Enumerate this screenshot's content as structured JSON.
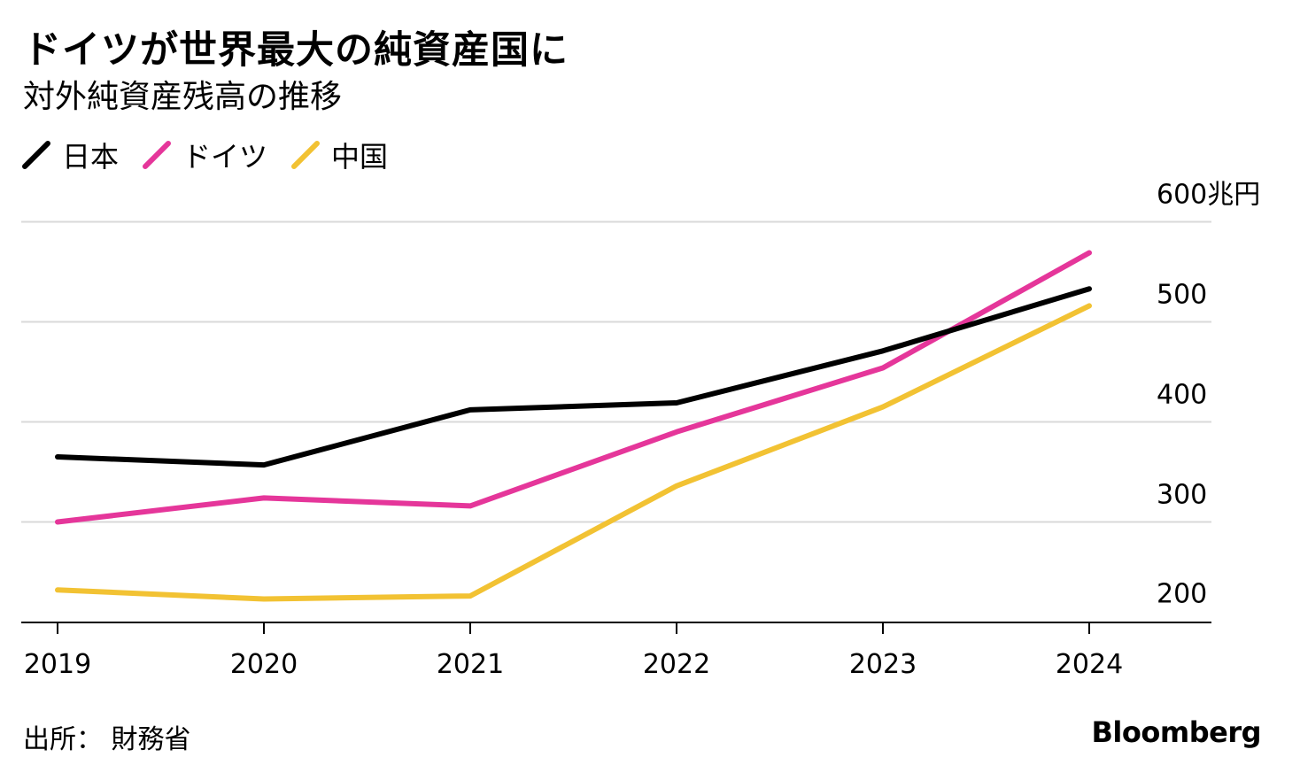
{
  "header": {
    "title": "ドイツが世界最大の純資産国に",
    "subtitle": "対外純資産残高の推移"
  },
  "footer": {
    "source": "出所： 財務省",
    "brand": "Bloomberg"
  },
  "chart_data": {
    "type": "line",
    "title": "ドイツが世界最大の純資産国に",
    "subtitle": "対外純資産残高の推移",
    "x": [
      "2019",
      "2020",
      "2021",
      "2022",
      "2023",
      "2024"
    ],
    "y_ticks": [
      200,
      300,
      400,
      500,
      600
    ],
    "y_tick_labels": [
      "200",
      "300",
      "400",
      "500",
      "600兆円"
    ],
    "ylim": [
      190,
      600
    ],
    "grid": true,
    "legend_position": "top-left",
    "series": [
      {
        "name": "日本",
        "color": "#000000",
        "values": [
          365,
          357,
          412,
          419,
          471,
          533
        ]
      },
      {
        "name": "ドイツ",
        "color": "#e5369a",
        "values": [
          300,
          324,
          316,
          390,
          454,
          569
        ]
      },
      {
        "name": "中国",
        "color": "#f2c233",
        "values": [
          232,
          223,
          226,
          336,
          415,
          516
        ]
      }
    ]
  }
}
